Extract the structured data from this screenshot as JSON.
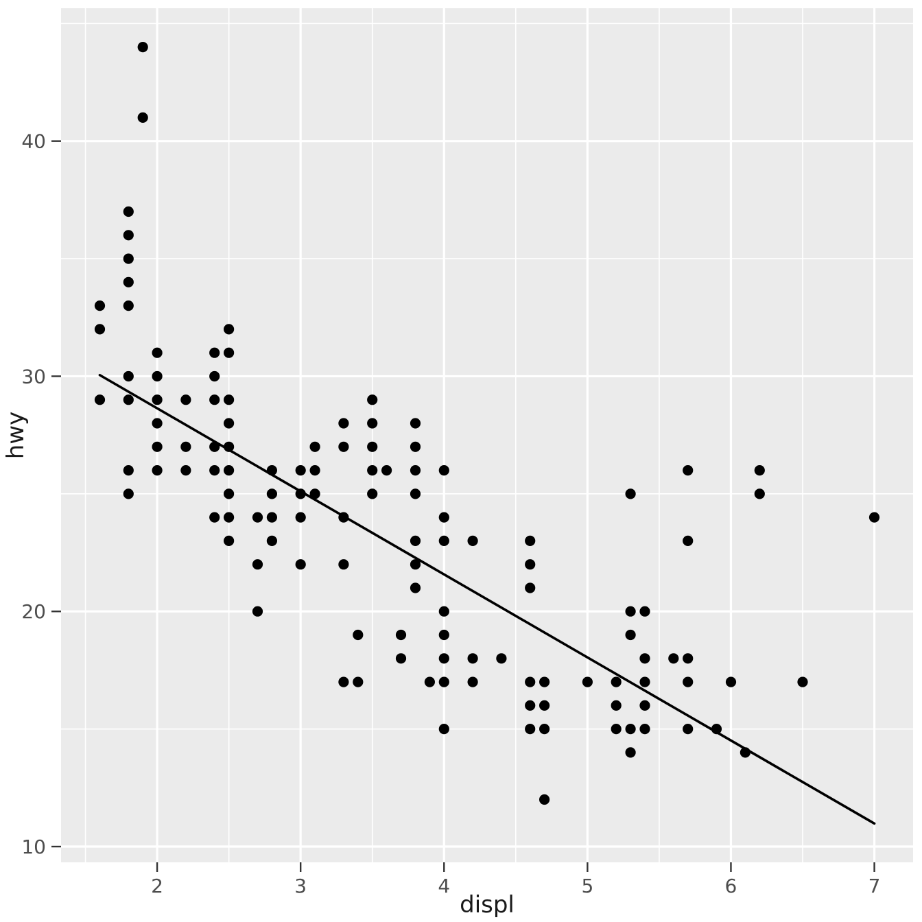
{
  "chart_data": {
    "type": "scatter",
    "title": "",
    "xlabel": "displ",
    "ylabel": "hwy",
    "x_tick_labels": [
      "2",
      "3",
      "4",
      "5",
      "6",
      "7"
    ],
    "x_ticks": [
      2,
      3,
      4,
      5,
      6,
      7
    ],
    "y_tick_labels": [
      "10",
      "20",
      "30",
      "40"
    ],
    "y_ticks": [
      10,
      20,
      30,
      40
    ],
    "x_minor_ticks": [
      1.5,
      2.5,
      3.5,
      4.5,
      5.5,
      6.5
    ],
    "y_minor_ticks": [
      15,
      25,
      35,
      45
    ],
    "xlim": [
      1.33,
      7.27
    ],
    "ylim": [
      9.33,
      45.65
    ],
    "grid": "on",
    "legend_position": "none",
    "points": [
      [
        1.6,
        29
      ],
      [
        1.6,
        32
      ],
      [
        1.6,
        33
      ],
      [
        1.8,
        25
      ],
      [
        1.8,
        26
      ],
      [
        1.8,
        29
      ],
      [
        1.8,
        30
      ],
      [
        1.8,
        33
      ],
      [
        1.8,
        34
      ],
      [
        1.8,
        35
      ],
      [
        1.8,
        36
      ],
      [
        1.8,
        37
      ],
      [
        1.9,
        41
      ],
      [
        1.9,
        44
      ],
      [
        2.0,
        26
      ],
      [
        2.0,
        27
      ],
      [
        2.0,
        28
      ],
      [
        2.0,
        29
      ],
      [
        2.0,
        30
      ],
      [
        2.0,
        31
      ],
      [
        2.2,
        26
      ],
      [
        2.2,
        27
      ],
      [
        2.2,
        29
      ],
      [
        2.4,
        24
      ],
      [
        2.4,
        26
      ],
      [
        2.4,
        27
      ],
      [
        2.4,
        29
      ],
      [
        2.4,
        30
      ],
      [
        2.4,
        31
      ],
      [
        2.5,
        23
      ],
      [
        2.5,
        24
      ],
      [
        2.5,
        25
      ],
      [
        2.5,
        26
      ],
      [
        2.5,
        27
      ],
      [
        2.5,
        28
      ],
      [
        2.5,
        29
      ],
      [
        2.5,
        31
      ],
      [
        2.5,
        32
      ],
      [
        2.7,
        20
      ],
      [
        2.7,
        22
      ],
      [
        2.7,
        24
      ],
      [
        2.8,
        23
      ],
      [
        2.8,
        24
      ],
      [
        2.8,
        25
      ],
      [
        2.8,
        26
      ],
      [
        3.0,
        22
      ],
      [
        3.0,
        24
      ],
      [
        3.0,
        25
      ],
      [
        3.0,
        26
      ],
      [
        3.1,
        25
      ],
      [
        3.1,
        26
      ],
      [
        3.1,
        27
      ],
      [
        3.3,
        17
      ],
      [
        3.3,
        22
      ],
      [
        3.3,
        24
      ],
      [
        3.3,
        27
      ],
      [
        3.3,
        28
      ],
      [
        3.4,
        17
      ],
      [
        3.4,
        19
      ],
      [
        3.5,
        25
      ],
      [
        3.5,
        26
      ],
      [
        3.5,
        27
      ],
      [
        3.5,
        28
      ],
      [
        3.5,
        29
      ],
      [
        3.6,
        26
      ],
      [
        3.7,
        18
      ],
      [
        3.7,
        19
      ],
      [
        3.8,
        21
      ],
      [
        3.8,
        22
      ],
      [
        3.8,
        23
      ],
      [
        3.8,
        25
      ],
      [
        3.8,
        26
      ],
      [
        3.8,
        27
      ],
      [
        3.8,
        28
      ],
      [
        3.9,
        17
      ],
      [
        4.0,
        15
      ],
      [
        4.0,
        17
      ],
      [
        4.0,
        18
      ],
      [
        4.0,
        19
      ],
      [
        4.0,
        20
      ],
      [
        4.0,
        23
      ],
      [
        4.0,
        24
      ],
      [
        4.0,
        26
      ],
      [
        4.2,
        17
      ],
      [
        4.2,
        18
      ],
      [
        4.2,
        23
      ],
      [
        4.4,
        18
      ],
      [
        4.6,
        15
      ],
      [
        4.6,
        16
      ],
      [
        4.6,
        17
      ],
      [
        4.6,
        21
      ],
      [
        4.6,
        22
      ],
      [
        4.6,
        23
      ],
      [
        4.7,
        12
      ],
      [
        4.7,
        15
      ],
      [
        4.7,
        16
      ],
      [
        4.7,
        17
      ],
      [
        5.0,
        17
      ],
      [
        5.2,
        15
      ],
      [
        5.2,
        16
      ],
      [
        5.2,
        17
      ],
      [
        5.3,
        14
      ],
      [
        5.3,
        15
      ],
      [
        5.3,
        19
      ],
      [
        5.3,
        20
      ],
      [
        5.3,
        25
      ],
      [
        5.4,
        15
      ],
      [
        5.4,
        16
      ],
      [
        5.4,
        17
      ],
      [
        5.4,
        18
      ],
      [
        5.4,
        20
      ],
      [
        5.6,
        18
      ],
      [
        5.7,
        15
      ],
      [
        5.7,
        17
      ],
      [
        5.7,
        18
      ],
      [
        5.7,
        23
      ],
      [
        5.7,
        26
      ],
      [
        5.9,
        15
      ],
      [
        6.0,
        17
      ],
      [
        6.1,
        14
      ],
      [
        6.2,
        25
      ],
      [
        6.2,
        26
      ],
      [
        6.5,
        17
      ],
      [
        7.0,
        24
      ]
    ],
    "trend_line": {
      "model": "linear",
      "slope": -3.53,
      "intercept": 35.7,
      "x_start": 1.6,
      "y_start": 30.05,
      "x_end": 7.0,
      "y_end": 10.98
    }
  },
  "style": {
    "background": "#ffffff",
    "panel_bg": "#ebebeb",
    "grid_color": "#ffffff",
    "point_color": "#000000",
    "line_color": "#000000",
    "tick_mark_color": "#333333",
    "tick_label_color": "#4d4d4d",
    "axis_title_color": "#1a1a1a"
  }
}
